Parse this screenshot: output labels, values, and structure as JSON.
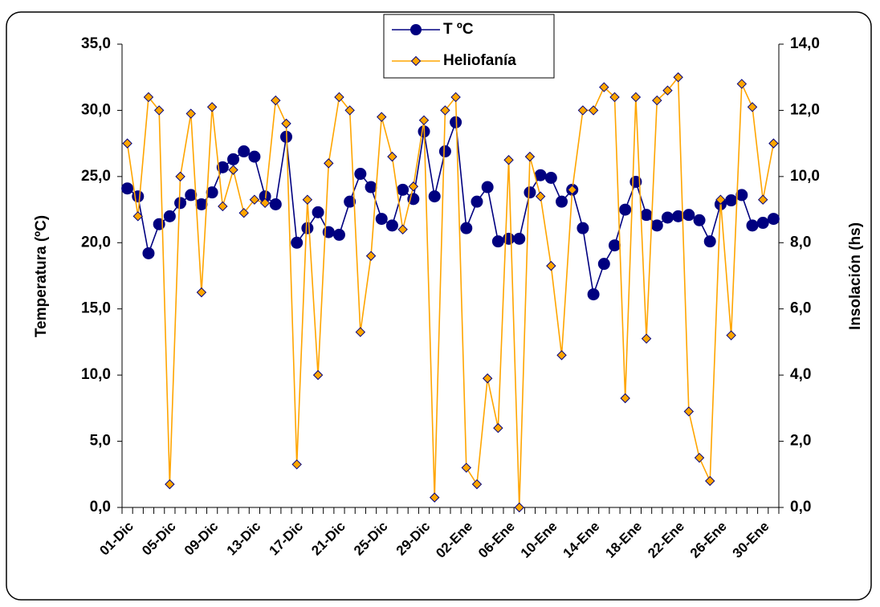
{
  "chart_data": {
    "type": "line",
    "y_label": "Temperatura (ºC)",
    "y2_label": "Insolación (hs)",
    "categories": [
      "01-Dic",
      null,
      null,
      null,
      "05-Dic",
      null,
      null,
      null,
      "09-Dic",
      null,
      null,
      null,
      "13-Dic",
      null,
      null,
      null,
      "17-Dic",
      null,
      null,
      null,
      "21-Dic",
      null,
      null,
      null,
      "25-Dic",
      null,
      null,
      null,
      "29-Dic",
      null,
      null,
      null,
      "02-Ene",
      null,
      null,
      null,
      "06-Ene",
      null,
      null,
      null,
      "10-Ene",
      null,
      null,
      null,
      "14-Ene",
      null,
      null,
      null,
      "18-Ene",
      null,
      null,
      null,
      "22-Ene",
      null,
      null,
      null,
      "26-Ene",
      null,
      null,
      null,
      "30-Ene",
      null
    ],
    "series": [
      {
        "name": "T ºC",
        "color": "#000080",
        "marker": "circle",
        "values": [
          24.1,
          23.5,
          19.2,
          21.4,
          22.0,
          23.0,
          23.6,
          22.9,
          23.8,
          25.7,
          26.3,
          26.9,
          26.5,
          23.5,
          22.9,
          28.0,
          20.0,
          21.1,
          22.3,
          20.8,
          20.6,
          23.1,
          25.2,
          24.2,
          21.8,
          21.3,
          24.0,
          23.3,
          28.4,
          23.5,
          26.9,
          29.1,
          21.1,
          23.1,
          24.2,
          20.1,
          20.3,
          20.3,
          23.8,
          25.1,
          24.9,
          23.1,
          24.0,
          21.1,
          16.1,
          18.4,
          19.8,
          22.5,
          24.6,
          22.1,
          21.3,
          21.9,
          22.0,
          22.1,
          21.7,
          20.1,
          22.9,
          23.2,
          23.6,
          21.3,
          21.5,
          21.8
        ]
      },
      {
        "name": "Heliofanía",
        "color": "#FFA500",
        "marker": "diamond",
        "axis": "y2",
        "values": [
          11.0,
          8.8,
          12.4,
          12.0,
          0.7,
          10.0,
          11.9,
          6.5,
          12.1,
          9.1,
          10.2,
          8.9,
          9.3,
          9.2,
          12.3,
          11.6,
          1.3,
          9.3,
          4.0,
          10.4,
          12.4,
          12.0,
          5.3,
          7.6,
          11.8,
          10.6,
          8.4,
          9.7,
          11.7,
          0.3,
          12.0,
          12.4,
          1.2,
          0.7,
          3.9,
          2.4,
          10.5,
          0.0,
          10.6,
          9.4,
          7.3,
          4.6,
          9.6,
          12.0,
          12.0,
          12.7,
          12.4,
          3.3,
          12.4,
          5.1,
          12.3,
          12.6,
          13.0,
          2.9,
          1.5,
          0.8,
          9.3,
          5.2,
          12.8,
          12.1,
          9.3,
          11.0
        ]
      }
    ],
    "ylim": [
      0,
      35
    ],
    "yticks": [
      {
        "value": 0,
        "label": "0,0"
      },
      {
        "value": 5,
        "label": "5,0"
      },
      {
        "value": 10,
        "label": "10,0"
      },
      {
        "value": 15,
        "label": "15,0"
      },
      {
        "value": 20,
        "label": "20,0"
      },
      {
        "value": 25,
        "label": "25,0"
      },
      {
        "value": 30,
        "label": "30,0"
      },
      {
        "value": 35,
        "label": "35,0"
      }
    ],
    "y2lim": [
      0,
      14
    ],
    "y2ticks": [
      {
        "value": 0,
        "label": "0,0"
      },
      {
        "value": 2,
        "label": "2,0"
      },
      {
        "value": 4,
        "label": "4,0"
      },
      {
        "value": 6,
        "label": "6,0"
      },
      {
        "value": 8,
        "label": "8,0"
      },
      {
        "value": 10,
        "label": "10,0"
      },
      {
        "value": 12,
        "label": "12,0"
      },
      {
        "value": 14,
        "label": "14,0"
      }
    ],
    "grid": false
  }
}
